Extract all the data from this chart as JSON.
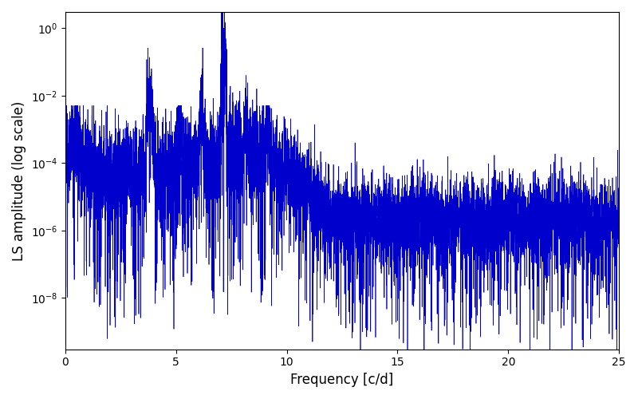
{
  "xlabel": "Frequency [c/d]",
  "ylabel": "LS amplitude (log scale)",
  "xlim": [
    0,
    25
  ],
  "line_color": "#0000cc",
  "line_width": 0.5,
  "background_color": "#ffffff",
  "figsize": [
    8.0,
    5.0
  ],
  "dpi": 100,
  "peak1_freq": 3.8,
  "peak1_amp": 0.02,
  "peak2_freq": 7.15,
  "peak2_amp": 1.0,
  "noise_floor_low": 5e-05,
  "noise_floor_high": 2e-06,
  "seed": 12345,
  "n_points": 8000,
  "freq_max": 25.0,
  "xlabel_fontsize": 12,
  "ylabel_fontsize": 12,
  "ymin": 3e-10,
  "ymax": 3.0
}
